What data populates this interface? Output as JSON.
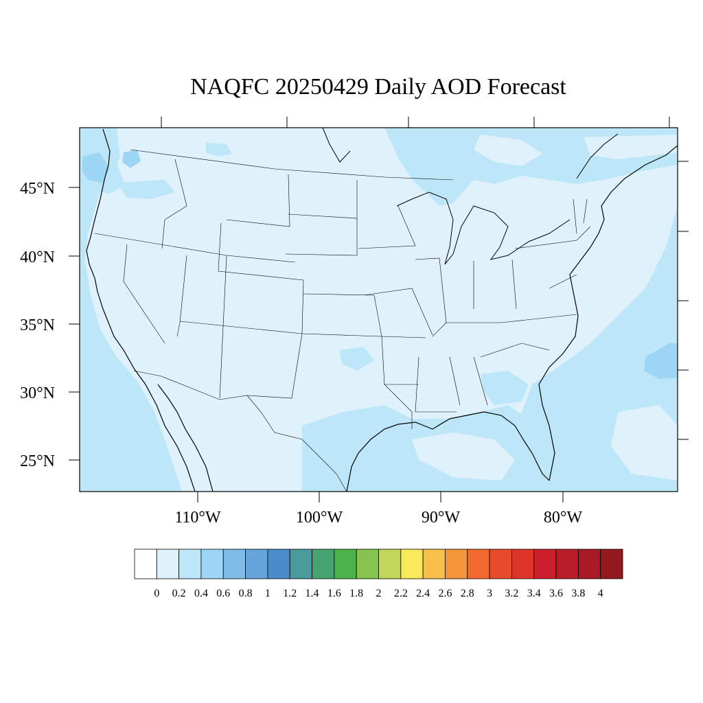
{
  "title": "NAQFC 20250429 Daily AOD Forecast",
  "map": {
    "projection": "Lambert Conformal",
    "background_color": "#dff2fb",
    "lat_labels": [
      "25°N",
      "30°N",
      "35°N",
      "40°N",
      "45°N"
    ],
    "lon_labels": [
      "110°W",
      "100°W",
      "90°W",
      "80°W"
    ]
  },
  "chart_data": {
    "type": "heatmap",
    "title": "NAQFC 20250429 Daily AOD Forecast",
    "xlabel": "",
    "ylabel": "",
    "colorbar": {
      "orientation": "horizontal",
      "tick_labels": [
        "0",
        "0.2",
        "0.4",
        "0.6",
        "0.8",
        "1",
        "1.2",
        "1.4",
        "1.6",
        "1.8",
        "2",
        "2.2",
        "2.4",
        "2.6",
        "2.8",
        "3",
        "3.2",
        "3.4",
        "3.6",
        "3.8",
        "4"
      ],
      "colors": [
        "#ffffff",
        "#dff2fb",
        "#bde6f8",
        "#9dd6f4",
        "#7fbde6",
        "#66a5d9",
        "#4a8cc9",
        "#4b9a9c",
        "#44a472",
        "#4cb34b",
        "#86c34f",
        "#c1d65b",
        "#f8e85c",
        "#f7bf4b",
        "#f5963d",
        "#f26a2d",
        "#e84b2b",
        "#dd3529",
        "#cc1f2c",
        "#b81d2a",
        "#a81b25",
        "#921a1e"
      ]
    }
  }
}
